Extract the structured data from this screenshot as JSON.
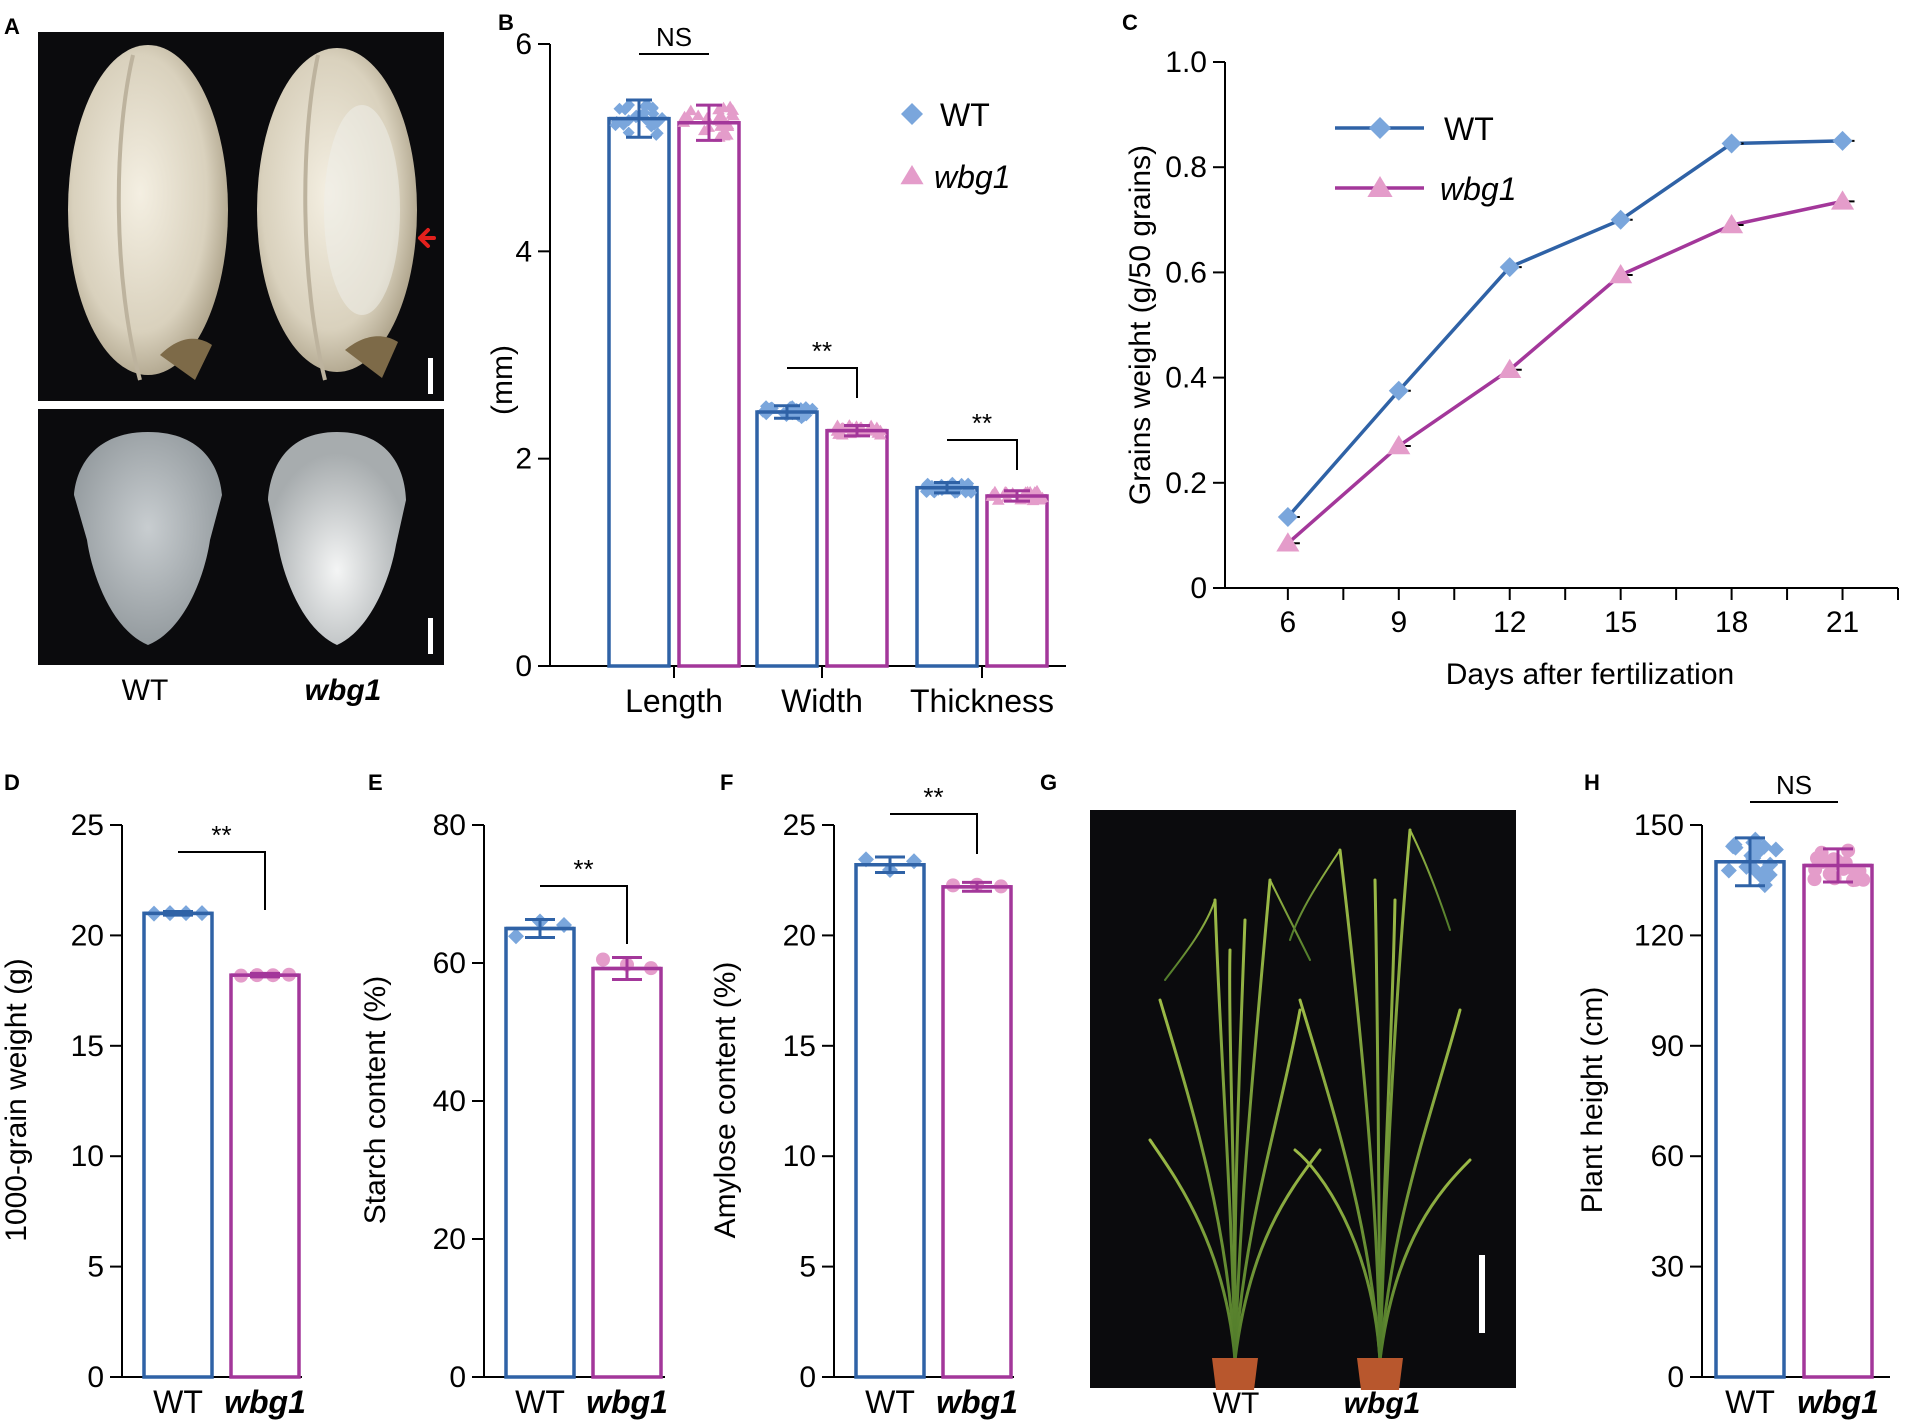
{
  "colors": {
    "wt": "#2f62a6",
    "wbg1": "#a3379a",
    "wt_point": "#7aa6dc",
    "wbg1_point": "#e49cca",
    "axis": "#000000",
    "photo_bg": "#0b0b0d",
    "arrow": "#e3201c"
  },
  "panels": {
    "A": {
      "label": "A",
      "genotypes": [
        "WT",
        "wbg1"
      ]
    },
    "G": {
      "label": "G",
      "genotypes": [
        "WT",
        "wbg1"
      ]
    }
  },
  "chart_data": [
    {
      "id": "B",
      "label": "B",
      "type": "bar",
      "categories": [
        "Length",
        "Width",
        "Thickness"
      ],
      "series": [
        {
          "name": "WT",
          "values": [
            5.28,
            2.45,
            1.72
          ],
          "errors": [
            0.18,
            0.06,
            0.05
          ]
        },
        {
          "name": "wbg1",
          "values": [
            5.24,
            2.27,
            1.64
          ],
          "errors": [
            0.17,
            0.05,
            0.05
          ]
        }
      ],
      "ylabel": "(mm)",
      "xlabel": "",
      "ylim": [
        0,
        6
      ],
      "yticks": [
        0,
        2,
        4,
        6
      ],
      "significance": [
        "NS",
        "**",
        "**"
      ],
      "legend": {
        "position": "top-right",
        "entries": [
          "WT",
          "wbg1"
        ]
      }
    },
    {
      "id": "C",
      "label": "C",
      "type": "line",
      "x": [
        6,
        9,
        12,
        15,
        18,
        21
      ],
      "series": [
        {
          "name": "WT",
          "values": [
            0.135,
            0.375,
            0.61,
            0.7,
            0.845,
            0.85
          ]
        },
        {
          "name": "wbg1",
          "values": [
            0.085,
            0.27,
            0.415,
            0.595,
            0.69,
            0.735
          ]
        }
      ],
      "xlabel": "Days after fertilization",
      "ylabel": "Grains weight (g/50 grains)",
      "xlim": [
        4.3,
        22.5
      ],
      "ylim": [
        0,
        1.0
      ],
      "yticks": [
        0,
        0.2,
        0.4,
        0.6,
        0.8,
        1.0
      ],
      "ytick_labels": [
        "0",
        "0.2",
        "0.4",
        "0.6",
        "0.8",
        "1.0"
      ],
      "legend": {
        "position": "top-left",
        "entries": [
          "WT",
          "wbg1"
        ]
      }
    },
    {
      "id": "D",
      "label": "D",
      "type": "bar",
      "categories": [
        "WT",
        "wbg1"
      ],
      "values": [
        21.0,
        18.2
      ],
      "errors": [
        0.08,
        0.08
      ],
      "ylabel": "1000-grain weight (g)",
      "ylim": [
        0,
        25
      ],
      "yticks": [
        0,
        5,
        10,
        15,
        20,
        25
      ],
      "significance": "**"
    },
    {
      "id": "E",
      "label": "E",
      "type": "bar",
      "categories": [
        "WT",
        "wbg1"
      ],
      "values": [
        65.0,
        59.2
      ],
      "errors": [
        1.3,
        1.6
      ],
      "ylabel": "Starch content (%)",
      "ylim": [
        0,
        80
      ],
      "yticks": [
        0,
        20,
        40,
        60,
        80
      ],
      "significance": "**"
    },
    {
      "id": "F",
      "label": "F",
      "type": "bar",
      "categories": [
        "WT",
        "wbg1"
      ],
      "values": [
        23.2,
        22.2
      ],
      "errors": [
        0.35,
        0.2
      ],
      "ylabel": "Amylose content (%)",
      "ylim": [
        0,
        25
      ],
      "yticks": [
        0,
        5,
        10,
        15,
        20,
        25
      ],
      "significance": "**"
    },
    {
      "id": "H",
      "label": "H",
      "type": "bar",
      "categories": [
        "WT",
        "wbg1"
      ],
      "values": [
        140,
        139
      ],
      "errors": [
        6.5,
        4.5
      ],
      "ylabel": "Plant height (cm)",
      "ylim": [
        0,
        150
      ],
      "yticks": [
        0,
        30,
        60,
        90,
        120,
        150
      ],
      "significance": "NS"
    }
  ]
}
